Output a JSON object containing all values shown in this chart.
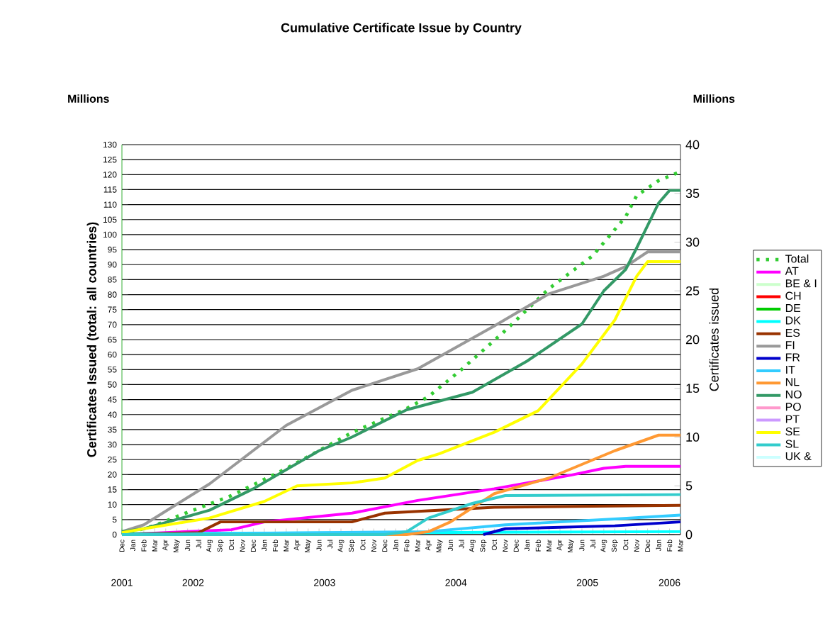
{
  "chart_data": {
    "type": "line",
    "title": "Cumulative Certificate Issue by Country",
    "ylabel": "Certificates Issued (total: all countries)",
    "y2label": "Certificates issued",
    "annotations": [
      "Millions",
      "Millions",
      "2001",
      "2002",
      "2003",
      "2004",
      "2005",
      "2006"
    ],
    "xlim": [
      "2001-12",
      "2006-03"
    ],
    "xticks": [
      {
        "value": "2001-12",
        "label": "Dec"
      },
      {
        "value": "2002-01",
        "label": "Jan"
      },
      {
        "value": "2002-02",
        "label": "Feb"
      },
      {
        "value": "2002-03",
        "label": "Mar"
      },
      {
        "value": "2002-04",
        "label": "Apr"
      },
      {
        "value": "2002-05",
        "label": "May"
      },
      {
        "value": "2002-06",
        "label": "Jun"
      },
      {
        "value": "2002-07",
        "label": "Jul"
      },
      {
        "value": "2002-08",
        "label": "Aug"
      },
      {
        "value": "2002-09",
        "label": "Sep"
      },
      {
        "value": "2002-10",
        "label": "Oct"
      },
      {
        "value": "2002-11",
        "label": "Nov"
      },
      {
        "value": "2002-12",
        "label": "Dec"
      },
      {
        "value": "2003-01",
        "label": "Jan"
      },
      {
        "value": "2003-02",
        "label": "Feb"
      },
      {
        "value": "2003-03",
        "label": "Mar"
      },
      {
        "value": "2003-04",
        "label": "Apr"
      },
      {
        "value": "2003-05",
        "label": "May"
      },
      {
        "value": "2003-06",
        "label": "Jun"
      },
      {
        "value": "2003-07",
        "label": "Jul"
      },
      {
        "value": "2003-08",
        "label": "Aug"
      },
      {
        "value": "2003-09",
        "label": "Sep"
      },
      {
        "value": "2003-10",
        "label": "Oct"
      },
      {
        "value": "2003-11",
        "label": "Nov"
      },
      {
        "value": "2003-12",
        "label": "Dec"
      },
      {
        "value": "2004-01",
        "label": "Jan"
      },
      {
        "value": "2004-02",
        "label": "Feb"
      },
      {
        "value": "2004-03",
        "label": "Mar"
      },
      {
        "value": "2004-04",
        "label": "Apr"
      },
      {
        "value": "2004-05",
        "label": "May"
      },
      {
        "value": "2004-06",
        "label": "Jun"
      },
      {
        "value": "2004-07",
        "label": "Jul"
      },
      {
        "value": "2004-08",
        "label": "Aug"
      },
      {
        "value": "2004-09",
        "label": "Sep"
      },
      {
        "value": "2004-10",
        "label": "Oct"
      },
      {
        "value": "2004-11",
        "label": "Nov"
      },
      {
        "value": "2004-12",
        "label": "Dec"
      },
      {
        "value": "2005-01",
        "label": "Jan"
      },
      {
        "value": "2005-02",
        "label": "Feb"
      },
      {
        "value": "2005-03",
        "label": "Mar"
      },
      {
        "value": "2005-04",
        "label": "Apr"
      },
      {
        "value": "2005-05",
        "label": "May"
      },
      {
        "value": "2005-06",
        "label": "Jun"
      },
      {
        "value": "2005-07",
        "label": "Jul"
      },
      {
        "value": "2005-08",
        "label": "Aug"
      },
      {
        "value": "2005-09",
        "label": "Sep"
      },
      {
        "value": "2005-10",
        "label": "Oct"
      },
      {
        "value": "2005-11",
        "label": "Nov"
      },
      {
        "value": "2005-12",
        "label": "Dec"
      },
      {
        "value": "2006-01",
        "label": "Jan"
      },
      {
        "value": "2006-02",
        "label": "Feb"
      },
      {
        "value": "2006-03",
        "label": "Mar"
      }
    ],
    "ylim": [
      0,
      130
    ],
    "yticks": [
      0,
      5,
      10,
      15,
      20,
      25,
      30,
      35,
      40,
      45,
      50,
      55,
      60,
      65,
      70,
      75,
      80,
      85,
      90,
      95,
      100,
      105,
      110,
      115,
      120,
      125,
      130
    ],
    "y2lim": [
      0,
      40
    ],
    "y2ticks": [
      0,
      5,
      10,
      15,
      20,
      25,
      30,
      35,
      40
    ],
    "grid": "y",
    "legend": "right",
    "series": [
      {
        "name": "Total",
        "color": "#33cc33",
        "line_style": "dotted",
        "x": [
          "2001-12",
          "2002-03",
          "2002-05",
          "2002-10",
          "2003-03",
          "2003-06",
          "2003-09",
          "2004-02",
          "2004-04",
          "2004-07",
          "2004-11",
          "2005-03",
          "2005-07",
          "2005-10",
          "2005-11",
          "2006-01",
          "2006-03"
        ],
        "values": [
          0,
          3,
          6,
          13,
          22,
          28,
          34,
          42,
          46,
          55,
          68,
          82,
          93,
          106,
          113,
          118,
          121
        ]
      },
      {
        "name": "AT",
        "color": "#ff00ff",
        "axis": "y2",
        "x": [
          "2001-12",
          "2002-10",
          "2003-01",
          "2003-09",
          "2004-03",
          "2004-10",
          "2005-05",
          "2005-08",
          "2005-10",
          "2006-03"
        ],
        "values": [
          0,
          0.5,
          1.3,
          2.2,
          3.5,
          4.7,
          6.1,
          6.8,
          7,
          7
        ]
      },
      {
        "name": "BE & I",
        "color": "#ccffcc",
        "axis": "y2"
      },
      {
        "name": "CH",
        "color": "#ff0000",
        "axis": "y2"
      },
      {
        "name": "DE",
        "color": "#00cc00",
        "axis": "y2"
      },
      {
        "name": "DK",
        "color": "#00ffff",
        "axis": "y2",
        "x": [
          "2001-12",
          "2006-03"
        ],
        "values": [
          0.1,
          0.3
        ]
      },
      {
        "name": "ES",
        "color": "#993300",
        "axis": "y2",
        "x": [
          "2001-12",
          "2002-07",
          "2002-09",
          "2003-09",
          "2003-12",
          "2004-10",
          "2006-03"
        ],
        "values": [
          0,
          0.2,
          1.3,
          1.3,
          2.2,
          2.8,
          3
        ]
      },
      {
        "name": "FI",
        "color": "#999999",
        "axis": "y2",
        "x": [
          "2001-12",
          "2002-02",
          "2002-08",
          "2003-03",
          "2003-09",
          "2004-03",
          "2004-10",
          "2005-03",
          "2005-08",
          "2005-10",
          "2005-12",
          "2006-03"
        ],
        "values": [
          0.3,
          1,
          5.2,
          11.2,
          14.8,
          17,
          21.4,
          24.7,
          26.5,
          27.5,
          29,
          29
        ]
      },
      {
        "name": "FR",
        "color": "#0000cc",
        "axis": "y2",
        "x": [
          "2004-09",
          "2004-11",
          "2005-09",
          "2006-03"
        ],
        "values": [
          0,
          0.6,
          0.9,
          1.3
        ]
      },
      {
        "name": "IT",
        "color": "#33ccff",
        "axis": "y2",
        "x": [
          "2001-12",
          "2004-04",
          "2004-11",
          "2005-09",
          "2006-03"
        ],
        "values": [
          0,
          0.3,
          1,
          1.6,
          2
        ]
      },
      {
        "name": "NL",
        "color": "#ff9933",
        "axis": "y2",
        "x": [
          "2001-12",
          "2004-02",
          "2004-04",
          "2004-06",
          "2004-10",
          "2005-03",
          "2005-09",
          "2006-01",
          "2006-03"
        ],
        "values": [
          0,
          0,
          0.3,
          1.3,
          4.2,
          5.8,
          8.6,
          10.2,
          10.2
        ]
      },
      {
        "name": "NO",
        "color": "#339966",
        "axis": "y2",
        "x": [
          "2001-12",
          "2002-02",
          "2002-08",
          "2002-12",
          "2003-06",
          "2003-09",
          "2004-02",
          "2004-08",
          "2005-01",
          "2005-06",
          "2005-08",
          "2005-10",
          "2005-11",
          "2006-01",
          "2006-02",
          "2006-03"
        ],
        "values": [
          0.3,
          0.6,
          2.5,
          4.7,
          8.6,
          10,
          12.8,
          14.6,
          17.8,
          21.6,
          25,
          27.2,
          29.4,
          34,
          35.3,
          35.3
        ]
      },
      {
        "name": "PO",
        "color": "#ff99cc",
        "axis": "y2"
      },
      {
        "name": "PT",
        "color": "#cc99ff",
        "axis": "y2"
      },
      {
        "name": "SE",
        "color": "#ffff00",
        "axis": "y2",
        "x": [
          "2001-12",
          "2002-02",
          "2002-08",
          "2003-01",
          "2003-04",
          "2003-09",
          "2003-12",
          "2004-03",
          "2004-05",
          "2004-10",
          "2005-02",
          "2005-06",
          "2005-09",
          "2005-11",
          "2005-12",
          "2006-03"
        ],
        "values": [
          0.2,
          0.6,
          1.7,
          3.4,
          5,
          5.3,
          5.8,
          7.6,
          8.3,
          10.5,
          12.7,
          17.5,
          22,
          26.5,
          28,
          28
        ]
      },
      {
        "name": "SL",
        "color": "#33cccc",
        "axis": "y2",
        "x": [
          "2001-12",
          "2003-12",
          "2004-02",
          "2004-04",
          "2004-08",
          "2004-11",
          "2006-03"
        ],
        "values": [
          0,
          0,
          0.3,
          1.7,
          3.2,
          4,
          4.1
        ]
      },
      {
        "name": "UK &",
        "color": "#ccffff",
        "axis": "y2"
      }
    ]
  }
}
